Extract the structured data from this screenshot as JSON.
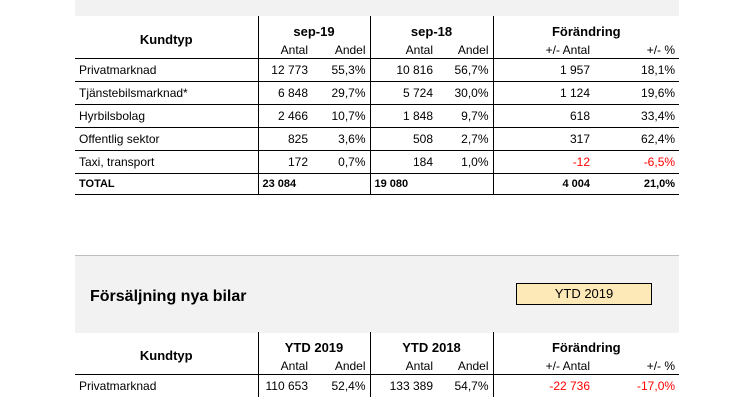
{
  "table1": {
    "kund_header": "Kundtyp",
    "groups": [
      "sep-19",
      "sep-18",
      "Förändring"
    ],
    "subheaders": [
      "Antal",
      "Andel",
      "Antal",
      "Andel",
      "+/- Antal",
      "+/- %"
    ],
    "rows": [
      {
        "label": "Privatmarknad",
        "c1": "12 773",
        "c2": "55,3%",
        "c3": "10 816",
        "c4": "56,7%",
        "c5": "1 957",
        "c6": "18,1%"
      },
      {
        "label": "Tjänstebilsmarknad*",
        "c1": "6 848",
        "c2": "29,7%",
        "c3": "5 724",
        "c4": "30,0%",
        "c5": "1 124",
        "c6": "19,6%"
      },
      {
        "label": "Hyrbilsbolag",
        "c1": "2 466",
        "c2": "10,7%",
        "c3": "1 848",
        "c4": "9,7%",
        "c5": "618",
        "c6": "33,4%"
      },
      {
        "label": "Offentlig sektor",
        "c1": "825",
        "c2": "3,6%",
        "c3": "508",
        "c4": "2,7%",
        "c5": "317",
        "c6": "62,4%"
      },
      {
        "label": "Taxi, transport",
        "c1": "172",
        "c2": "0,7%",
        "c3": "184",
        "c4": "1,0%",
        "c5": "-12",
        "c6": "-6,5%"
      }
    ],
    "total": {
      "label": "TOTAL",
      "c1": "23 084",
      "c3": "19 080",
      "c5": "4 004",
      "c6": "21,0%"
    }
  },
  "section2": {
    "title": "Försäljning nya bilar",
    "period_box": "YTD 2019"
  },
  "table2": {
    "kund_header": "Kundtyp",
    "groups": [
      "YTD 2019",
      "YTD 2018",
      "Förändring"
    ],
    "subheaders": [
      "Antal",
      "Andel",
      "Antal",
      "Andel",
      "+/- Antal",
      "+/- %"
    ],
    "rows": [
      {
        "label": "Privatmarknad",
        "c1": "110 653",
        "c2": "52,4%",
        "c3": "133 389",
        "c4": "54,7%",
        "c5": "-22 736",
        "c6": "-17,0%"
      }
    ]
  },
  "colors": {
    "negative": "#ff0000",
    "period_box_bg": "#fde9b7",
    "panel_bg": "#f2f2f2"
  }
}
